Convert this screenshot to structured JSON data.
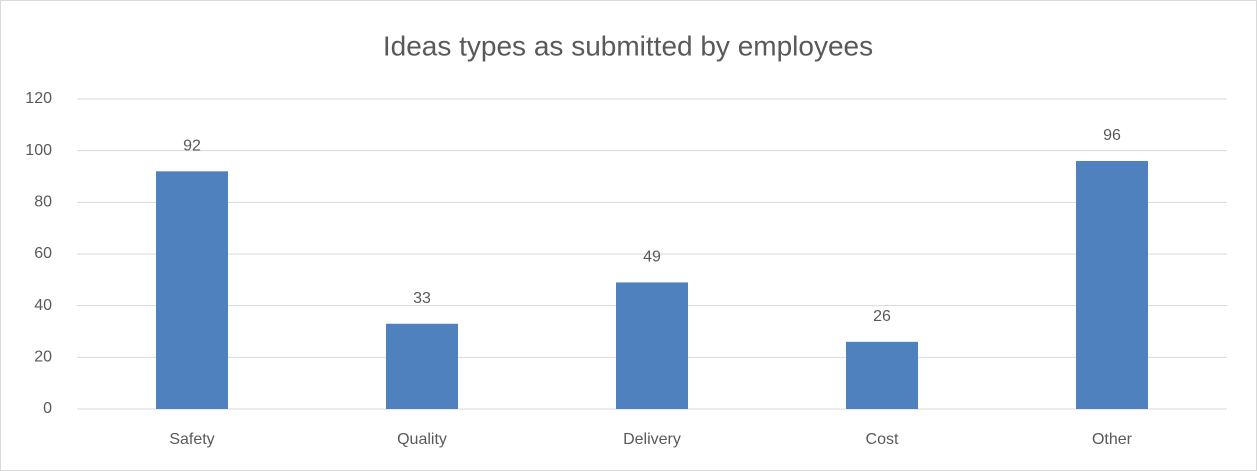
{
  "chart_data": {
    "type": "bar",
    "title": "Ideas types as submitted by employees",
    "categories": [
      "Safety",
      "Quality",
      "Delivery",
      "Cost",
      "Other"
    ],
    "values": [
      92,
      33,
      49,
      26,
      96
    ],
    "color": "#4e81bd",
    "ylim": [
      0,
      120
    ],
    "yticks": [
      0,
      20,
      40,
      60,
      80,
      100,
      120
    ],
    "grid": true,
    "data_labels": true
  }
}
